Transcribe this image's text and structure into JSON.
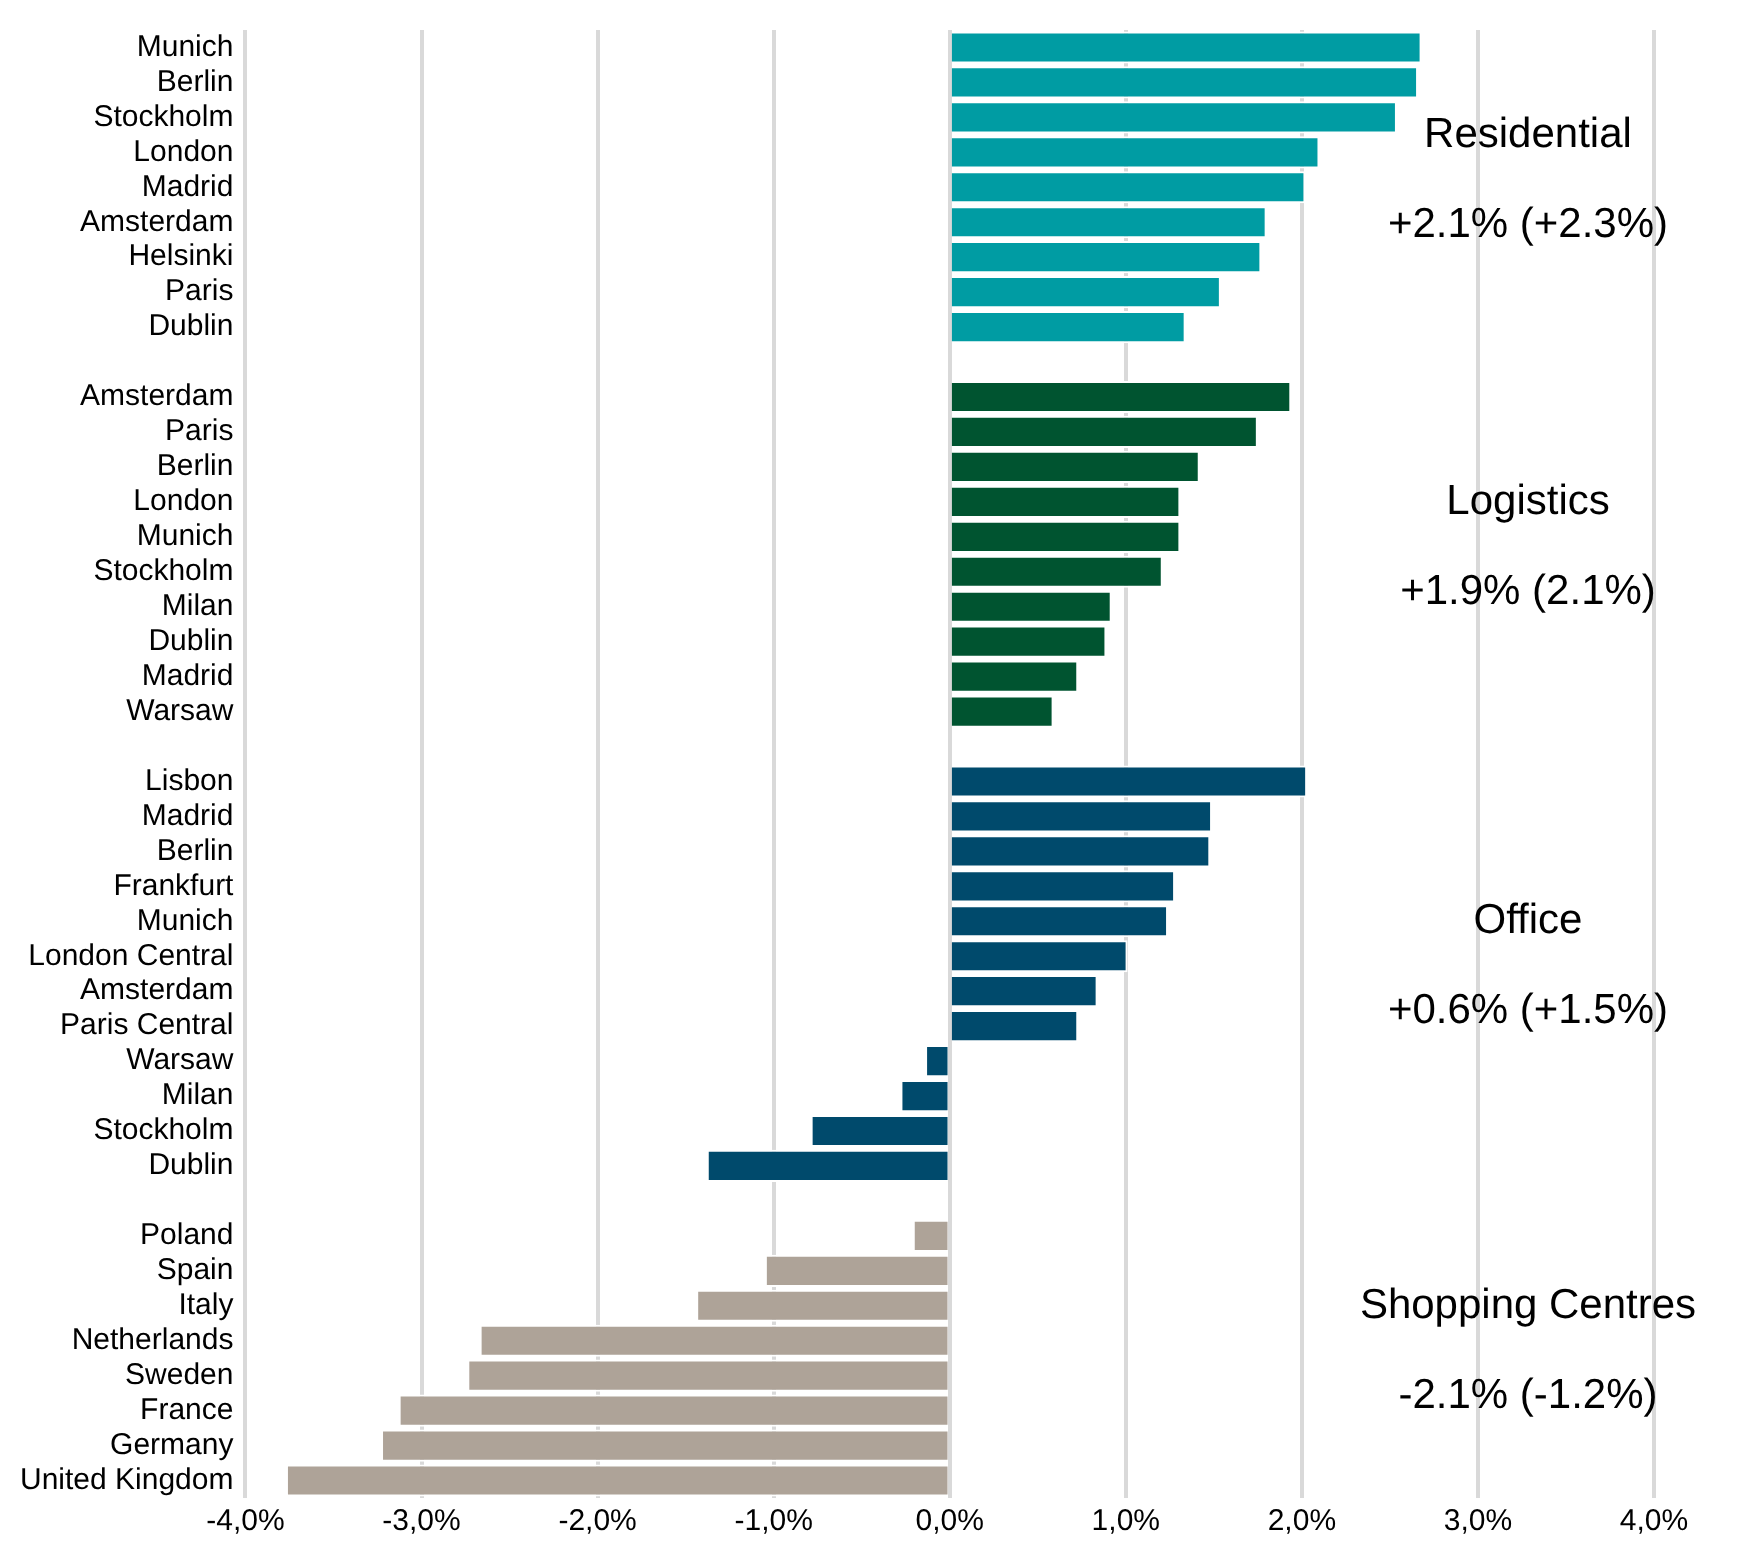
{
  "chart_data": {
    "type": "bar",
    "orientation": "horizontal",
    "categories": [
      "Munich",
      "Berlin",
      "Stockholm",
      "London",
      "Madrid",
      "Amsterdam",
      "Helsinki",
      "Paris",
      "Dublin",
      null,
      "Amsterdam",
      "Paris",
      "Berlin",
      "London",
      "Munich",
      "Stockholm",
      "Milan",
      "Dublin",
      "Madrid",
      "Warsaw",
      null,
      "Lisbon",
      "Madrid",
      "Berlin",
      "Frankfurt",
      "Munich",
      "London Central",
      "Amsterdam",
      "Paris Central",
      "Warsaw",
      "Milan",
      "Stockholm",
      "Dublin",
      null,
      "Poland",
      "Spain",
      "Italy",
      "Netherlands",
      "Sweden",
      "France",
      "Germany",
      "United Kingdom"
    ],
    "values": [
      2.68,
      2.66,
      2.54,
      2.1,
      2.02,
      1.8,
      1.77,
      1.54,
      1.34,
      null,
      1.94,
      1.75,
      1.42,
      1.31,
      1.31,
      1.21,
      0.92,
      0.89,
      0.73,
      0.59,
      null,
      2.03,
      1.49,
      1.48,
      1.28,
      1.24,
      1.01,
      0.84,
      0.73,
      -0.14,
      -0.28,
      -0.79,
      -1.38,
      null,
      -0.21,
      -1.05,
      -1.44,
      -2.67,
      -2.74,
      -3.13,
      -3.23,
      -3.77
    ],
    "colors": [
      "#009ca3",
      "#009ca3",
      "#009ca3",
      "#009ca3",
      "#009ca3",
      "#009ca3",
      "#009ca3",
      "#009ca3",
      "#009ca3",
      null,
      "#005430",
      "#005430",
      "#005430",
      "#005430",
      "#005430",
      "#005430",
      "#005430",
      "#005430",
      "#005430",
      "#005430",
      null,
      "#004a6c",
      "#004a6c",
      "#004a6c",
      "#004a6c",
      "#004a6c",
      "#004a6c",
      "#004a6c",
      "#004a6c",
      "#004a6c",
      "#004a6c",
      "#004a6c",
      "#004a6c",
      null,
      "#aea398",
      "#aea398",
      "#aea398",
      "#aea398",
      "#aea398",
      "#aea398",
      "#aea398",
      "#aea398"
    ],
    "xlim": [
      -4,
      4
    ],
    "xticks": [
      {
        "value": -4,
        "label": "-4,0%"
      },
      {
        "value": -3,
        "label": "-3,0%"
      },
      {
        "value": -2,
        "label": "-2,0%"
      },
      {
        "value": -1,
        "label": "-1,0%"
      },
      {
        "value": 0,
        "label": "0,0%"
      },
      {
        "value": 1,
        "label": "1,0%"
      },
      {
        "value": 2,
        "label": "2,0%"
      },
      {
        "value": 3,
        "label": "3,0%"
      },
      {
        "value": 4,
        "label": "4,0%"
      }
    ],
    "grid": "x",
    "annotations": [
      "Residential",
      "+2.1% (+2.3%)",
      "Logistics",
      "+1.9% (2.1%)",
      "Office",
      "+0.6% (+1.5%)",
      "Shopping Centres",
      "-2.1% (-1.2%)"
    ]
  }
}
